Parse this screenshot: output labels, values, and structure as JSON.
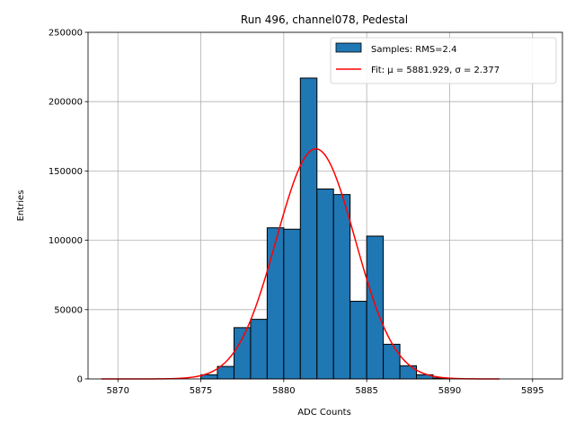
{
  "chart_data": {
    "type": "bar",
    "title": "Run 496, channel078, Pedestal",
    "xlabel": "ADC Counts",
    "ylabel": "Entries",
    "xlim": [
      5868.2,
      5896.8
    ],
    "ylim": [
      0,
      250000
    ],
    "xticks": [
      5870,
      5875,
      5880,
      5885,
      5890,
      5895
    ],
    "yticks": [
      0,
      50000,
      100000,
      150000,
      200000,
      250000
    ],
    "grid": true,
    "legend_position": "top-right",
    "histogram": {
      "name": "Samples: RMS=2.4",
      "color": "#1f77b4",
      "bins": [
        {
          "left": 5875.0,
          "right": 5876.0,
          "count": 3000
        },
        {
          "left": 5876.0,
          "right": 5877.0,
          "count": 9000
        },
        {
          "left": 5877.0,
          "right": 5878.0,
          "count": 37000
        },
        {
          "left": 5878.0,
          "right": 5879.0,
          "count": 43000
        },
        {
          "left": 5879.0,
          "right": 5880.0,
          "count": 109000
        },
        {
          "left": 5880.0,
          "right": 5881.0,
          "count": 108000
        },
        {
          "left": 5881.0,
          "right": 5882.0,
          "count": 217000
        },
        {
          "left": 5882.0,
          "right": 5883.0,
          "count": 137000
        },
        {
          "left": 5883.0,
          "right": 5884.0,
          "count": 133000
        },
        {
          "left": 5884.0,
          "right": 5885.0,
          "count": 56000
        },
        {
          "left": 5885.0,
          "right": 5886.0,
          "count": 103000
        },
        {
          "left": 5886.0,
          "right": 5887.0,
          "count": 25000
        },
        {
          "left": 5887.0,
          "right": 5888.0,
          "count": 9500
        },
        {
          "left": 5888.0,
          "right": 5889.0,
          "count": 3000
        },
        {
          "left": 5889.0,
          "right": 5890.0,
          "count": 700
        }
      ]
    },
    "fit": {
      "name": "Fit: μ = 5881.929, σ = 2.377",
      "color": "#ff0000",
      "mu": 5881.929,
      "sigma": 2.377,
      "amplitude": 166000,
      "x_range": [
        5869.0,
        5893.0
      ]
    }
  }
}
